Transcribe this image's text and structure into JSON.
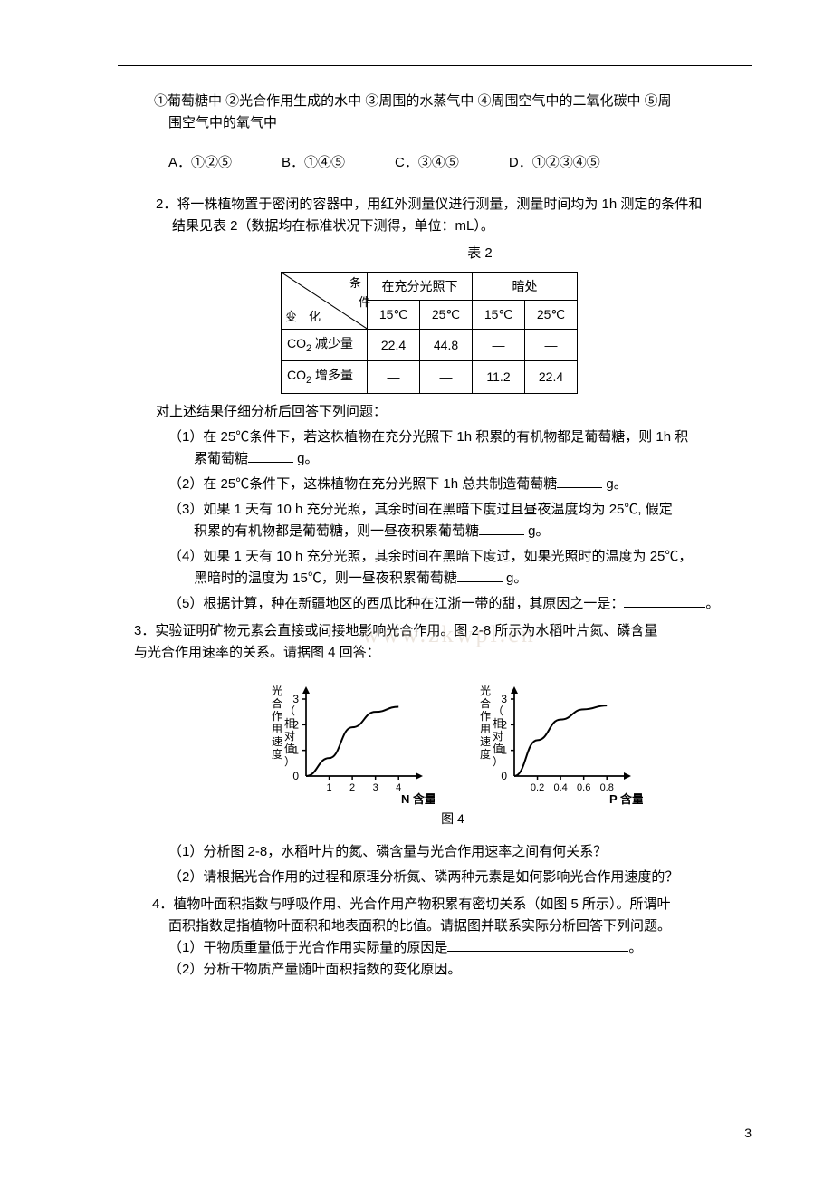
{
  "q1": {
    "line1": "①葡萄糖中 ②光合作用生成的水中 ③周围的水蒸气中 ④周围空气中的二氧化碳中 ⑤周",
    "line2": "围空气中的氧气中",
    "optA": "A．①②⑤",
    "optB": "B．①④⑤",
    "optC": "C．③④⑤",
    "optD": "D．①②③④⑤"
  },
  "q2": {
    "intro1": "2．将一株植物置于密闭的容器中，用红外测量仪进行测量，测量时间均为 1h 测定的条件和",
    "intro2": "结果见表 2（数据均在标准状况下测得，单位：mL）。",
    "table_caption": "表 2",
    "table": {
      "diag_top": "条",
      "diag_mid": "件",
      "diag_bottom": "变　化",
      "header_light": "在充分光照下",
      "header_dark": "暗处",
      "t15": "15℃",
      "t25": "25℃",
      "row1_label_pre": "CO",
      "row1_label_sub": "2",
      "row1_label_post": " 减少量",
      "row2_label_pre": "CO",
      "row2_label_sub": "2",
      "row2_label_post": " 增多量",
      "v_22_4": "22.4",
      "v_44_8": "44.8",
      "v_11_2": "11.2",
      "v_22_4b": "22.4",
      "dash": "—"
    },
    "analysis": "对上述结果仔细分析后回答下列问题：",
    "s1a": "（1）在 25℃条件下，若这株植物在充分光照下 1h 积累的有机物都是葡萄糖，则 1h 积",
    "s1b": "累葡萄糖",
    "s1c": " g。",
    "s2a": "（2）在 25℃条件下，这株植物在充分光照下 1h 总共制造葡萄糖",
    "s2b": " g。",
    "s3a": "（3）如果 1 天有 10 h 充分光照，其余时间在黑暗下度过且昼夜温度均为 25℃, 假定",
    "s3b": "积累的有机物都是葡萄糖，则一昼夜积累葡萄糖",
    "s3c": " g。",
    "s4a": "（4）如果 1 天有 10 h 充分光照，其余时间在黑暗下度过，如果光照时的温度为 25℃，",
    "s4b": "黑暗时的温度为 15℃，则一昼夜积累葡萄糖",
    "s4c": " g。",
    "s5a": "（5）根据计算，种在新疆地区的西瓜比种在江浙一带的甜，其原因之一是：",
    "s5b": "。"
  },
  "q3": {
    "intro1": "3．实验证明矿物元素会直接或间接地影响光合作用。图 2-8 所示为水稻叶片氮、磷含量",
    "intro2": "与光合作用速率的关系。请据图 4 回答：",
    "chartN": {
      "ylabel1": "光合作用速度",
      "ylabel2": "（相对值）",
      "yticks": [
        "1",
        "2",
        "3"
      ],
      "xticks": [
        "1",
        "2",
        "3",
        "4"
      ],
      "xlabel": "N 含量",
      "xvals": [
        1,
        2,
        3,
        4
      ],
      "yvals": [
        0.7,
        1.9,
        2.5,
        2.7
      ],
      "line_color": "#000000",
      "axis_color": "#000000",
      "bg": "#ffffff"
    },
    "chartP": {
      "ylabel1": "光合作用速度",
      "ylabel2": "（相对值）",
      "yticks": [
        "1",
        "2",
        "3"
      ],
      "xticks": [
        "0.2",
        "0.4",
        "0.6",
        "0.8"
      ],
      "xlabel": "P 含量",
      "xvals": [
        0.2,
        0.4,
        0.6,
        0.8
      ],
      "yvals": [
        1.4,
        2.2,
        2.6,
        2.75
      ],
      "line_color": "#000000",
      "axis_color": "#000000",
      "bg": "#ffffff"
    },
    "chart_caption": "图 4",
    "s1": "（1）分析图 2-8，水稻叶片的氮、磷含量与光合作用速率之间有何关系？",
    "s2": "（2）请根据光合作用的过程和原理分析氮、磷两种元素是如何影响光合作用速度的？"
  },
  "q4": {
    "intro1": "4．植物叶面积指数与呼吸作用、光合作用产物积累有密切关系（如图 5 所示）。所谓叶",
    "intro2": "面积指数是指植物叶面积和地表面积的比值。请据图并联系实际分析回答下列问题。",
    "s1a": "（1）干物质重量低于光合作用实际量的原因是",
    "s1b": "。",
    "s2": "（2）分析干物质产量随叶面积指数的变化原因。"
  },
  "page_num": "3",
  "watermark": "www.zkwpl.cn"
}
